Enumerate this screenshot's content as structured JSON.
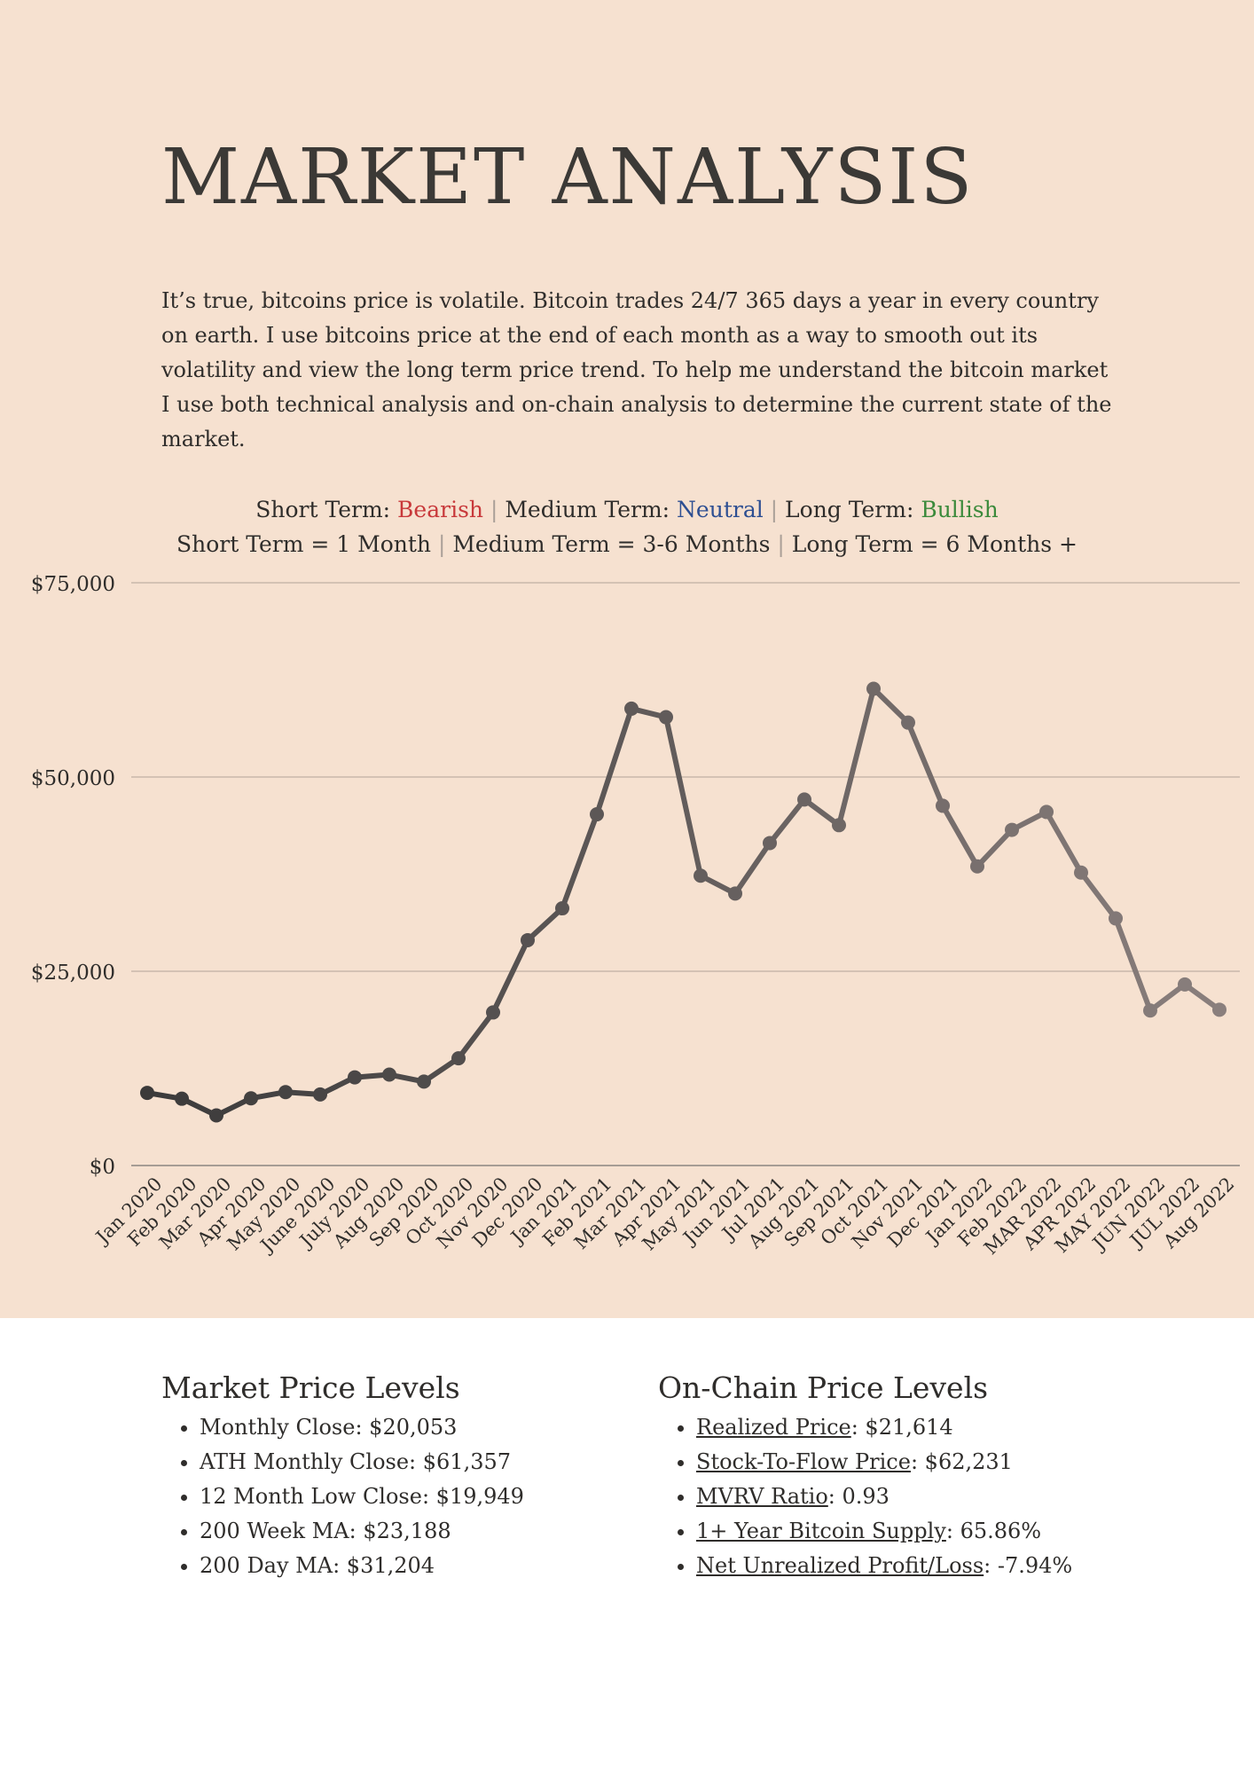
{
  "title": "MARKET ANALYSIS",
  "intro": "It’s true, bitcoins price is volatile. Bitcoin trades 24/7 365 days a year in every country on earth. I use bitcoins price at the end of each month as a way to smooth out its volatility and view the long term price trend. To help me understand the bitcoin market I use both technical analysis and on-chain analysis to determine the current state of the market.",
  "outlook": {
    "short_label": "Short Term: ",
    "short_value": "Bearish",
    "medium_label": " Medium Term: ",
    "medium_value": "Neutral",
    "long_label": " Long Term: ",
    "long_value": "Bullish",
    "separator": "|",
    "def_short": "Short Term = 1 Month ",
    "def_medium": " Medium Term = 3-6 Months ",
    "def_long": " Long Term = 6 Months +"
  },
  "colors": {
    "bearish": "#c8393b",
    "neutral": "#2e4f92",
    "bullish": "#3b8a3b",
    "line_start": "#3b3a3a",
    "line_end": "#8a7f7d",
    "background": "#f6e1d0"
  },
  "chart_data": {
    "type": "line",
    "ylim": [
      0,
      75000
    ],
    "ytick_values": [
      0,
      25000,
      50000,
      75000
    ],
    "ytick_labels": [
      "$0",
      "$25,000",
      "$50,000",
      "$75,000"
    ],
    "grid": true,
    "categories": [
      "Jan 2020",
      "Feb 2020",
      "Mar 2020",
      "Apr 2020",
      "May 2020",
      "June 2020",
      "July 2020",
      "Aug 2020",
      "Sep 2020",
      "Oct 2020",
      "Nov 2020",
      "Dec 2020",
      "Jan 2021",
      "Feb 2021",
      "Mar 2021",
      "Apr 2021",
      "May 2021",
      "Jun 2021",
      "Jul 2021",
      "Aug 2021",
      "Sep 2021",
      "Oct 2021",
      "Nov 2021",
      "Dec 2021",
      "Jan 2022",
      "Feb 2022",
      "MAR 2022",
      "APR 2022",
      "MAY 2022",
      "JUN 2022",
      "JUL 2022",
      "Aug 2022"
    ],
    "series": [
      {
        "values": [
          9350,
          8600,
          6450,
          8650,
          9450,
          9150,
          11350,
          11700,
          10800,
          13800,
          19700,
          29000,
          33100,
          45200,
          58800,
          57700,
          37300,
          35000,
          41500,
          47100,
          43800,
          61357,
          57000,
          46300,
          38500,
          43200,
          45500,
          37700,
          31800,
          19949,
          23300,
          20053
        ]
      }
    ]
  },
  "market_levels": {
    "title": "Market Price Levels",
    "items": [
      {
        "label": "Monthly Close: ",
        "value": "$20,053"
      },
      {
        "label": "ATH Monthly Close: ",
        "value": "$61,357"
      },
      {
        "label": "12 Month Low Close: ",
        "value": "$19,949"
      },
      {
        "label": "200 Week MA: ",
        "value": "$23,188"
      },
      {
        "label": "200 Day MA: ",
        "value": "$31,204"
      }
    ]
  },
  "onchain_levels": {
    "title": "On-Chain Price Levels",
    "items": [
      {
        "label": "Realized Price",
        "value": ": $21,614"
      },
      {
        "label": "Stock-To-Flow Price",
        "value": ": $62,231"
      },
      {
        "label": "MVRV Ratio",
        "value": ": 0.93"
      },
      {
        "label": "1+ Year Bitcoin Supply",
        "value": ": 65.86%"
      },
      {
        "label": "Net Unrealized Profit/Loss",
        "value": ": -7.94%"
      }
    ]
  }
}
